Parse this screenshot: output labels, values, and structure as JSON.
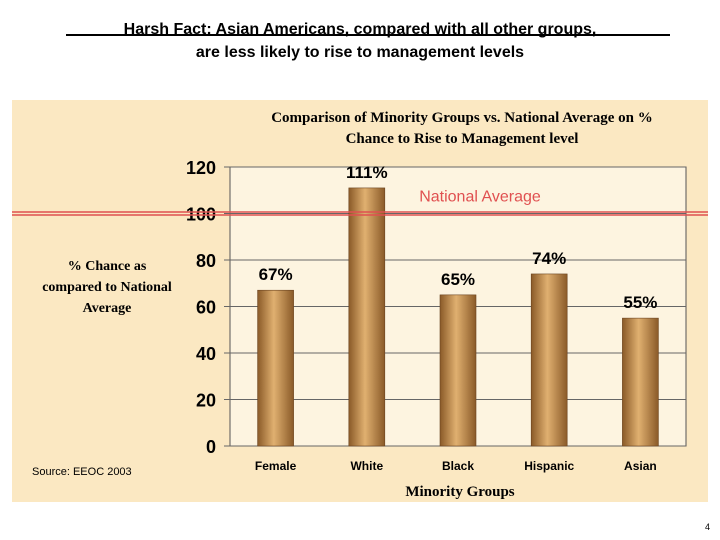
{
  "slide": {
    "title_line1": "Harsh Fact: Asian Americans, compared with all other groups,",
    "title_line2": "are  less likely to rise to management levels",
    "page_number": "4"
  },
  "chart_data": {
    "type": "bar",
    "title_line1": "Comparison of Minority Groups vs. National Average on %",
    "title_line2": "Chance to Rise to Management level",
    "categories": [
      "Female",
      "White",
      "Black",
      "Hispanic",
      "Asian"
    ],
    "values": [
      67,
      111,
      65,
      74,
      55
    ],
    "data_labels": [
      "67%",
      "111%",
      "65%",
      "74%",
      "55%"
    ],
    "xlabel": "Minority Groups",
    "ylabel_lines": [
      "% Chance as",
      "compared to National",
      "Average"
    ],
    "ylim": [
      0,
      120
    ],
    "yticks": [
      "0",
      "20",
      "40",
      "60",
      "80",
      "100",
      "120"
    ],
    "grid": true,
    "reference_line": {
      "value": 100,
      "label": "National Average",
      "color": "#e05050"
    },
    "bar_color": "#c08a4a",
    "source": "Source: EEOC 2003"
  }
}
